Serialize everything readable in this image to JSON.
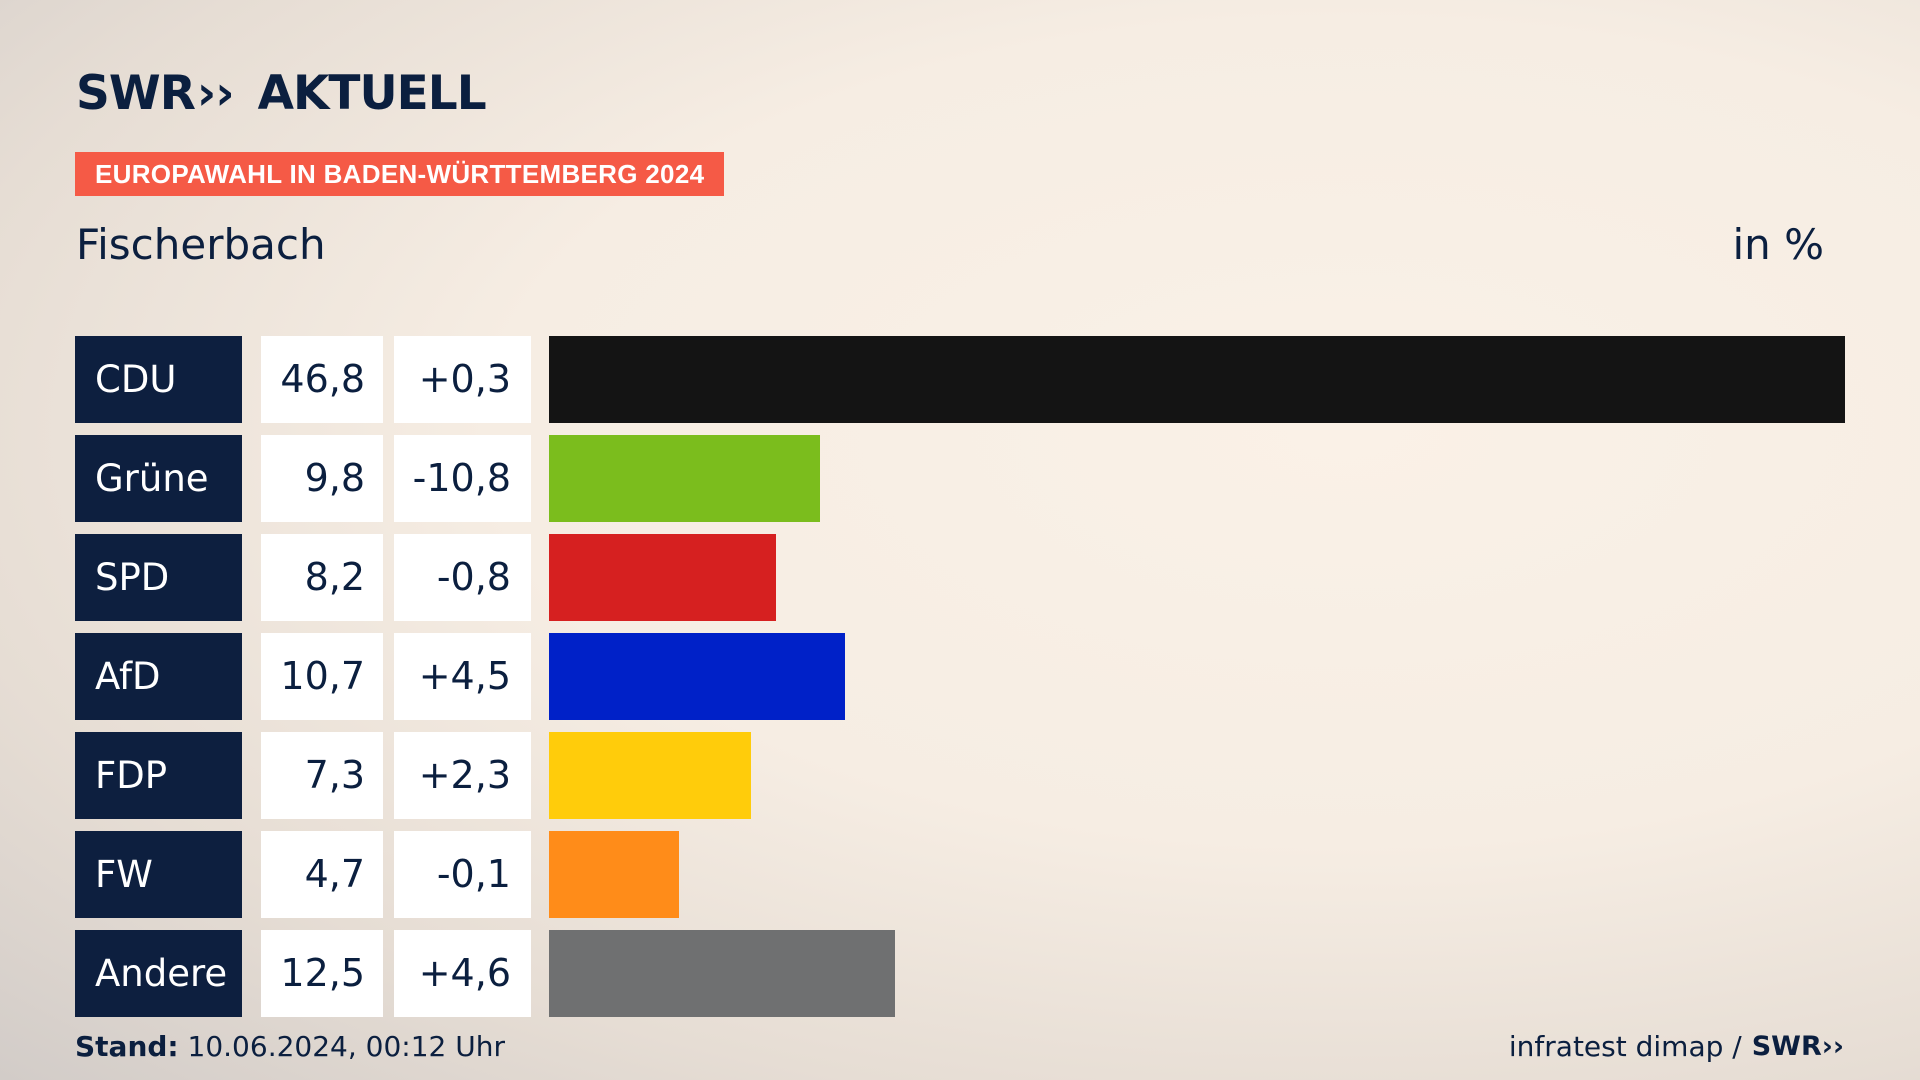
{
  "brand": {
    "logo_text": "SWR",
    "logo_chevrons": "››",
    "logo_suffix": "AKTUELL"
  },
  "header": {
    "badge": "EUROPAWAHL IN BADEN-WÜRTTEMBERG 2024",
    "subtitle": "Fischerbach",
    "unit": "in %"
  },
  "colors": {
    "accent": "#f55a46",
    "navy": "#0d1f3f"
  },
  "chart_data": {
    "type": "bar",
    "orientation": "horizontal",
    "categories": [
      "CDU",
      "Grüne",
      "SPD",
      "AfD",
      "FDP",
      "FW",
      "Andere"
    ],
    "values": [
      46.8,
      9.8,
      8.2,
      10.7,
      7.3,
      4.7,
      12.5
    ],
    "value_labels": [
      "46,8",
      "9,8",
      "8,2",
      "10,7",
      "7,3",
      "4,7",
      "12,5"
    ],
    "diffs": [
      0.3,
      -10.8,
      -0.8,
      4.5,
      2.3,
      -0.1,
      4.6
    ],
    "diff_labels": [
      "+0,3",
      "-10,8",
      "-0,8",
      "+4,5",
      "+2,3",
      "-0,1",
      "+4,6"
    ],
    "bar_colors": [
      "#141414",
      "#7bbd1d",
      "#d62020",
      "#0021c8",
      "#ffcc0b",
      "#ff8c19",
      "#6f7071"
    ],
    "xlim": [
      0,
      46.8
    ],
    "grid": false
  },
  "footer": {
    "stand_label": "Stand:",
    "stand_value": "10.06.2024, 00:12 Uhr",
    "source": "infratest dimap /",
    "source_logo": "SWR››"
  }
}
